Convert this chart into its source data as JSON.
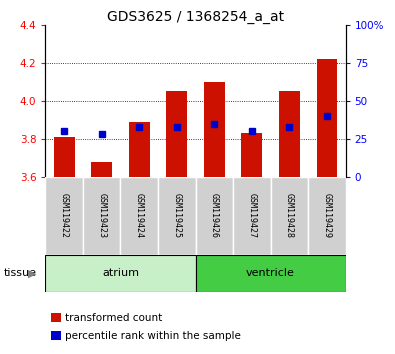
{
  "title": "GDS3625 / 1368254_a_at",
  "samples": [
    "GSM119422",
    "GSM119423",
    "GSM119424",
    "GSM119425",
    "GSM119426",
    "GSM119427",
    "GSM119428",
    "GSM119429"
  ],
  "transformed_count": [
    3.81,
    3.68,
    3.89,
    4.05,
    4.1,
    3.83,
    4.05,
    4.22
  ],
  "percentile_rank": [
    30,
    28,
    33,
    33,
    35,
    30,
    33,
    40
  ],
  "groups": [
    {
      "label": "atrium",
      "start": 0,
      "end": 4,
      "color": "#c8f0c8"
    },
    {
      "label": "ventricle",
      "start": 4,
      "end": 8,
      "color": "#44cc44"
    }
  ],
  "group_row_label": "tissue",
  "ylim_left": [
    3.6,
    4.4
  ],
  "ylim_right": [
    0,
    100
  ],
  "yticks_left": [
    3.6,
    3.8,
    4.0,
    4.2,
    4.4
  ],
  "yticks_right": [
    0,
    25,
    50,
    75,
    100
  ],
  "ytick_labels_right": [
    "0",
    "25",
    "50",
    "75",
    "100%"
  ],
  "bar_color": "#cc1100",
  "bar_bottom": 3.6,
  "marker_color": "#0000cc",
  "grid_color": "#000000",
  "bg_color": "#ffffff",
  "title_fontsize": 10,
  "tick_fontsize": 7.5,
  "bar_width": 0.55
}
